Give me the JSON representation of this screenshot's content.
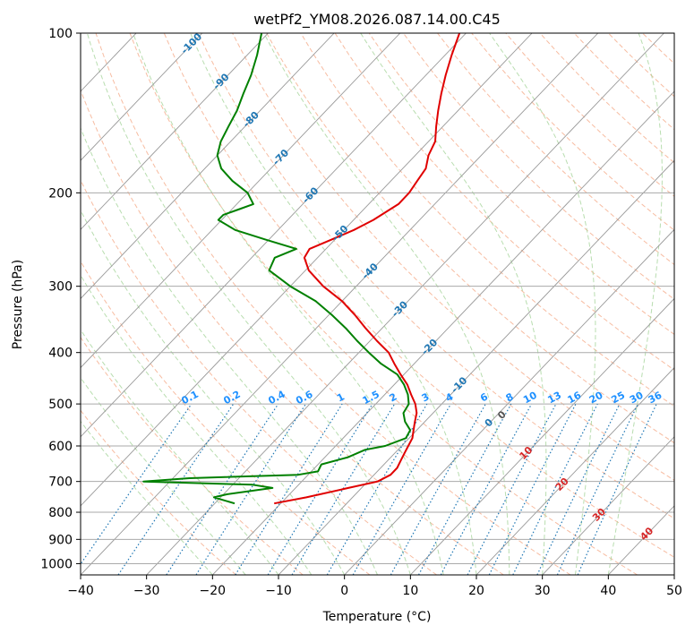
{
  "chart_data": {
    "type": "skew-t log-p diagram",
    "title": "wetPf2_YM08.2026.087.14.00.C45",
    "xlabel": "Temperature (°C)",
    "ylabel": "Pressure (hPa)",
    "xlim": [
      -40,
      50
    ],
    "ylim": [
      1050,
      100
    ],
    "x_ticks": [
      -40,
      -30,
      -20,
      -10,
      0,
      10,
      20,
      30,
      40,
      50
    ],
    "y_ticks": [
      100,
      200,
      300,
      400,
      500,
      600,
      700,
      800,
      900,
      1000
    ],
    "y_scale": "log",
    "grid": true,
    "colors": {
      "temperature": "#e00000",
      "dewpoint": "#008000",
      "dry_adiabats": "#f4a582",
      "moist_adiabats": "#a6d49b",
      "mixing_ratio": "#1f77b4",
      "isotherms": "#999999",
      "isobars": "#aaaaaa",
      "isotherm_labels": "#1f77b4",
      "dry_labels": "#d62728",
      "mixing_labels": "#1e90ff",
      "zero_label": "#555555"
    },
    "isotherm_labels": [
      "-100",
      "-90",
      "-80",
      "-70",
      "-60",
      "-50",
      "-40",
      "-30",
      "-20",
      "-10",
      "0"
    ],
    "isotherm_label_values": [
      -100,
      -90,
      -80,
      -70,
      -60,
      -50,
      -40,
      -30,
      -20,
      -10,
      0
    ],
    "dry_adiabat_labels": [
      "10",
      "20",
      "30",
      "40"
    ],
    "dry_adiabat_label_values": [
      10,
      20,
      30,
      40
    ],
    "mixing_ratio_labels": [
      "0.1",
      "0.2",
      "0.4",
      "0.6",
      "1",
      "1.5",
      "2",
      "3",
      "4",
      "6",
      "8",
      "10",
      "13",
      "16",
      "20",
      "25",
      "30",
      "36"
    ],
    "mixing_ratio_values": [
      0.1,
      0.2,
      0.4,
      0.6,
      1,
      1.5,
      2,
      3,
      4,
      6,
      8,
      10,
      13,
      16,
      20,
      25,
      30,
      36
    ],
    "series": [
      {
        "key": "temperature",
        "p": [
          770,
          750,
          720,
          700,
          680,
          660,
          640,
          620,
          600,
          580,
          560,
          540,
          520,
          500,
          480,
          460,
          440,
          420,
          400,
          380,
          360,
          340,
          320,
          300,
          280,
          265,
          255,
          245,
          235,
          225,
          210,
          200,
          190,
          180,
          170,
          160,
          150,
          140,
          130,
          120,
          110,
          100
        ],
        "t": [
          -21,
          -17,
          -12,
          -8.5,
          -7.5,
          -7.5,
          -8.0,
          -8.5,
          -9.0,
          -9.5,
          -10.5,
          -11.5,
          -12.5,
          -14.0,
          -16.0,
          -18.0,
          -20.5,
          -23.0,
          -25.5,
          -29.0,
          -32.5,
          -36.0,
          -40.0,
          -45.0,
          -49.5,
          -52.0,
          -52.5,
          -50.5,
          -48.5,
          -47.0,
          -45.5,
          -45.5,
          -46.0,
          -46.5,
          -48.0,
          -49.0,
          -51.0,
          -53.0,
          -55.0,
          -57.0,
          -59.0,
          -61.0
        ]
      },
      {
        "key": "dewpoint",
        "p": [
          770,
          760,
          750,
          740,
          720,
          710,
          700,
          690,
          680,
          670,
          650,
          630,
          610,
          600,
          580,
          560,
          540,
          520,
          500,
          480,
          460,
          440,
          420,
          400,
          380,
          360,
          340,
          320,
          300,
          280,
          265,
          255,
          245,
          235,
          225,
          220,
          215,
          210,
          200,
          190,
          180,
          170,
          160,
          150,
          140,
          130,
          120,
          110,
          100
        ],
        "t": [
          -27,
          -29,
          -31,
          -29.5,
          -23.5,
          -27.0,
          -44.0,
          -37.5,
          -21.5,
          -19.0,
          -19.5,
          -16.5,
          -15.0,
          -12.5,
          -10.5,
          -11.0,
          -13.0,
          -14.5,
          -15.0,
          -16.5,
          -18.5,
          -21.0,
          -25.0,
          -28.5,
          -32.0,
          -35.5,
          -39.5,
          -44.0,
          -50.0,
          -55.5,
          -56.5,
          -54.5,
          -60.5,
          -66.5,
          -70.5,
          -70.5,
          -69.0,
          -67.5,
          -70.0,
          -74.0,
          -77.5,
          -80.0,
          -81.5,
          -82.5,
          -83.5,
          -85.0,
          -86.5,
          -88.5,
          -91.0
        ]
      }
    ]
  }
}
